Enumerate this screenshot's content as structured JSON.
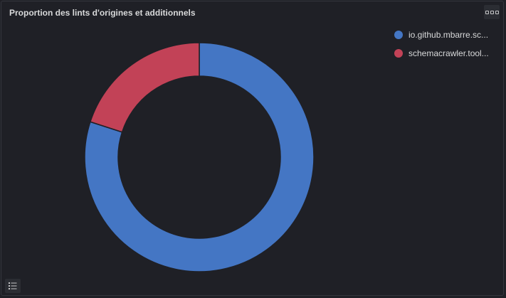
{
  "panel": {
    "title": "Proportion des lints d'origines et additionnels"
  },
  "icons": {
    "menu": "more-options-icon",
    "legend_toggle": "list-icon"
  },
  "colors": {
    "background": "#1f2026",
    "slice_blue": "#4476c4",
    "slice_red": "#c24257",
    "text": "#d8d9da"
  },
  "chart_data": {
    "type": "pie",
    "style": "donut",
    "title": "Proportion des lints d'origines et additionnels",
    "legend_position": "top-right",
    "series": [
      {
        "name": "io.github.mbarre.sc...",
        "value": 80,
        "color": "#4476c4"
      },
      {
        "name": "schemacrawler.tool...",
        "value": 20,
        "color": "#c24257"
      }
    ]
  }
}
